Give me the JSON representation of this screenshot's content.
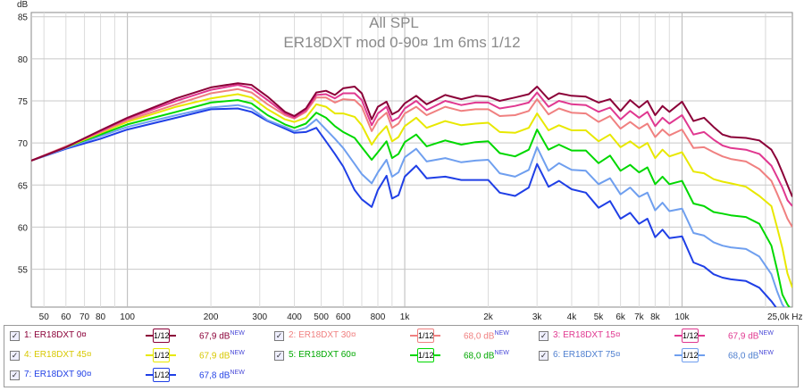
{
  "title": "All SPL",
  "subtitle": "ER18DXT mod 0-90¤ 1m 6ms 1/12",
  "axes": {
    "y_unit_label": "dB",
    "y_ticks": [
      "85",
      "80",
      "75",
      "70",
      "65",
      "60",
      "55"
    ],
    "x_tick_labels": [
      {
        "label": "50",
        "f": 50
      },
      {
        "label": "60",
        "f": 60
      },
      {
        "label": "70",
        "f": 70
      },
      {
        "label": "80",
        "f": 80
      },
      {
        "label": "100",
        "f": 100
      },
      {
        "label": "200",
        "f": 200
      },
      {
        "label": "300",
        "f": 300
      },
      {
        "label": "400",
        "f": 400
      },
      {
        "label": "500",
        "f": 500
      },
      {
        "label": "600",
        "f": 600
      },
      {
        "label": "800",
        "f": 800
      },
      {
        "label": "1k",
        "f": 1000
      },
      {
        "label": "2k",
        "f": 2000
      },
      {
        "label": "3k",
        "f": 3000
      },
      {
        "label": "4k",
        "f": 4000
      },
      {
        "label": "5k",
        "f": 5000
      },
      {
        "label": "6k",
        "f": 6000
      },
      {
        "label": "7k",
        "f": 7000
      },
      {
        "label": "8k",
        "f": 8000
      },
      {
        "label": "10k",
        "f": 10000
      },
      {
        "label": "25,0k Hz",
        "f": 25000
      }
    ]
  },
  "chart_data": {
    "type": "line",
    "title": "All SPL",
    "subtitle": "ER18DXT mod 0-90¤ 1m 6ms 1/12",
    "xlabel": "Hz",
    "ylabel": "dB",
    "x_scale": "log",
    "xlim": [
      45,
      25000
    ],
    "ylim": [
      50.5,
      85.5
    ],
    "grid": true,
    "legend_position": "bottom",
    "x": [
      45,
      60,
      80,
      100,
      150,
      200,
      250,
      280,
      320,
      370,
      400,
      440,
      480,
      520,
      560,
      600,
      660,
      700,
      760,
      800,
      860,
      900,
      950,
      1000,
      1100,
      1200,
      1400,
      1600,
      1800,
      2000,
      2200,
      2500,
      2800,
      3000,
      3300,
      3600,
      4000,
      4500,
      5000,
      5500,
      6000,
      6500,
      7000,
      7500,
      8000,
      8500,
      9000,
      10000,
      11000,
      12000,
      13000,
      14000,
      15000,
      17000,
      19000,
      21000,
      22000,
      23000,
      24000,
      25000
    ],
    "series": [
      {
        "name": "ER18DXT 0¤",
        "color": "#8b0038",
        "values": [
          67.9,
          69.5,
          71.5,
          73,
          75.3,
          76.6,
          77.1,
          76.9,
          75.5,
          73.7,
          73.2,
          74.1,
          76,
          76.2,
          75.7,
          76.5,
          76.7,
          75.9,
          72.8,
          74.3,
          74.9,
          73.4,
          73.8,
          74.7,
          75.6,
          74.6,
          75.7,
          75.2,
          75.6,
          75.5,
          75,
          75.4,
          75.8,
          76.7,
          75.2,
          75.9,
          75.6,
          75.5,
          74.8,
          75.2,
          73.8,
          75.1,
          74.2,
          75,
          73.3,
          74.4,
          73.7,
          74.9,
          72.6,
          73,
          71.9,
          71,
          70.7,
          70.6,
          70.3,
          69.2,
          68,
          66.5,
          65,
          63.6
        ]
      },
      {
        "name": "ER18DXT 30¤",
        "color": "#f08080",
        "values": [
          67.9,
          69.6,
          71.3,
          72.7,
          74.6,
          75.9,
          76.4,
          76,
          74.6,
          73.3,
          72.9,
          73.7,
          75.4,
          75.4,
          74.8,
          75.2,
          75.1,
          74.3,
          71.4,
          72.7,
          73.6,
          71.8,
          72.3,
          73.5,
          74.3,
          73.3,
          74.3,
          73.8,
          74,
          74,
          73.2,
          73.3,
          73.8,
          75.2,
          73.4,
          74.1,
          73.6,
          73.5,
          72.5,
          73.2,
          71.7,
          72.5,
          71.7,
          72.3,
          70.7,
          71.6,
          70.9,
          71.6,
          69.4,
          69.5,
          68.9,
          68.4,
          68.1,
          67.8,
          66.9,
          65.5,
          64,
          62.5,
          61,
          60
        ]
      },
      {
        "name": "ER18DXT 15¤",
        "color": "#e03890",
        "values": [
          67.9,
          69.5,
          71.4,
          72.9,
          75,
          76.3,
          76.9,
          76.5,
          75.1,
          73.5,
          73,
          73.9,
          75.7,
          75.8,
          75.3,
          75.9,
          75.9,
          75.1,
          72.1,
          73.5,
          74.3,
          72.6,
          73,
          74.1,
          75,
          73.9,
          75,
          74.5,
          74.8,
          74.8,
          74.1,
          74.4,
          74.8,
          76,
          74.3,
          75,
          74.6,
          74.5,
          73.7,
          74.2,
          72.8,
          73.8,
          73,
          73.7,
          72,
          73,
          72.3,
          73.3,
          71,
          71.3,
          70.4,
          69.7,
          69.4,
          69.2,
          68.7,
          67.3,
          66,
          64.7,
          63.2,
          62.5
        ]
      },
      {
        "name": "ER18DXT 45¤",
        "color": "#e8e800",
        "values": [
          67.9,
          69.5,
          71.2,
          72.5,
          74.3,
          75.3,
          75.8,
          75.4,
          74,
          72.8,
          72.5,
          73,
          74.6,
          74.3,
          73.5,
          73.5,
          73.1,
          72.1,
          69.8,
          70.9,
          72,
          70.2,
          70.7,
          72,
          73,
          71.8,
          72.6,
          72.1,
          72.3,
          72.4,
          71.3,
          71.2,
          71.8,
          73.5,
          71.5,
          72.1,
          71.5,
          71.5,
          70.2,
          71,
          69.5,
          70.2,
          69.4,
          70,
          68.2,
          69.2,
          68.4,
          68.9,
          66.6,
          66.4,
          65.7,
          65.4,
          65.2,
          64.8,
          63.7,
          62.5,
          60,
          57.5,
          54.5,
          52.8
        ]
      },
      {
        "name": "ER18DXT 60¤",
        "color": "#00d800",
        "values": [
          67.9,
          69.5,
          71,
          72.2,
          73.7,
          74.8,
          75.1,
          74.7,
          73.3,
          72.2,
          71.8,
          72.3,
          73.6,
          73,
          72,
          71.3,
          70.6,
          69.5,
          68,
          68.9,
          70.2,
          68.2,
          68.7,
          70.1,
          71,
          69.6,
          70.3,
          69.8,
          70.1,
          70.2,
          68.8,
          68.4,
          69.2,
          71.6,
          69.2,
          69.8,
          69.1,
          69.1,
          67.6,
          68.5,
          66.7,
          67.4,
          66.5,
          67.1,
          65.1,
          66,
          65.1,
          65.5,
          62.8,
          62.5,
          61.8,
          61.6,
          61.4,
          61.2,
          60.4,
          57.8,
          55,
          52,
          50.8,
          50
        ]
      },
      {
        "name": "ER18DXT 75¤",
        "color": "#6f9fef",
        "values": [
          67.9,
          69.4,
          70.8,
          71.9,
          73.3,
          74.2,
          74.5,
          74.1,
          72.7,
          71.9,
          71.4,
          71.8,
          72.8,
          71.6,
          70.5,
          69.4,
          67.5,
          66.3,
          65.2,
          66.5,
          68,
          66,
          66.5,
          68.3,
          69.3,
          67.8,
          68.2,
          67.7,
          67.9,
          68,
          66.4,
          66,
          66.8,
          69.5,
          66.7,
          67.6,
          66.8,
          66.7,
          65.1,
          65.8,
          63.9,
          64.7,
          63.6,
          64.1,
          62,
          62.9,
          61.9,
          62.2,
          59.3,
          59,
          58.2,
          57.8,
          57.6,
          57.4,
          56.5,
          54.4,
          52.4,
          50.8,
          50,
          50
        ]
      },
      {
        "name": "ER18DXT 90¤",
        "color": "#1f3fe6",
        "values": [
          67.9,
          69.3,
          70.5,
          71.6,
          73,
          74,
          74.1,
          73.7,
          72.6,
          71.7,
          71.2,
          71.3,
          71.8,
          70.2,
          68.7,
          67.2,
          64.4,
          63.3,
          62.4,
          64.4,
          66.1,
          63.4,
          63.8,
          66,
          67.3,
          65.8,
          66,
          65.6,
          65.6,
          65.6,
          64.1,
          63.7,
          64.7,
          67.5,
          64.8,
          65.5,
          64.5,
          64.1,
          62.3,
          63.1,
          61,
          61.7,
          60.4,
          61,
          58.8,
          59.7,
          58.7,
          58.9,
          55.8,
          55.3,
          54.4,
          54,
          53.8,
          53.6,
          52.8,
          51.2,
          50.3,
          50,
          50,
          50
        ]
      }
    ]
  },
  "legend": {
    "items": [
      {
        "label": "1: ER18DXT 0¤",
        "smoothing": "1/12",
        "value": "67,9 dB",
        "badge": "NEW",
        "color": "#8b0038",
        "text_color": "#8b0038",
        "checked": true
      },
      {
        "label": "2: ER18DXT 30¤",
        "smoothing": "1/12",
        "value": "68,0 dB",
        "badge": "NEW",
        "color": "#f08080",
        "text_color": "#f08080",
        "checked": true
      },
      {
        "label": "3: ER18DXT 15¤",
        "smoothing": "1/12",
        "value": "67,9 dB",
        "badge": "NEW",
        "color": "#e03890",
        "text_color": "#e03890",
        "checked": true
      },
      {
        "label": "4: ER18DXT 45¤",
        "smoothing": "1/12",
        "value": "67,9 dB",
        "badge": "NEW",
        "color": "#e8e800",
        "text_color": "#d8c800",
        "checked": true
      },
      {
        "label": "5: ER18DXT 60¤",
        "smoothing": "1/12",
        "value": "68,0 dB",
        "badge": "NEW",
        "color": "#00d800",
        "text_color": "#00a800",
        "checked": true
      },
      {
        "label": "6: ER18DXT 75¤",
        "smoothing": "1/12",
        "value": "68,0 dB",
        "badge": "NEW",
        "color": "#6f9fef",
        "text_color": "#4f7fcf",
        "checked": true
      },
      {
        "label": "7: ER18DXT 90¤",
        "smoothing": "1/12",
        "value": "67,8 dB",
        "badge": "NEW",
        "color": "#1f3fe6",
        "text_color": "#1f3fe6",
        "checked": true
      }
    ]
  }
}
